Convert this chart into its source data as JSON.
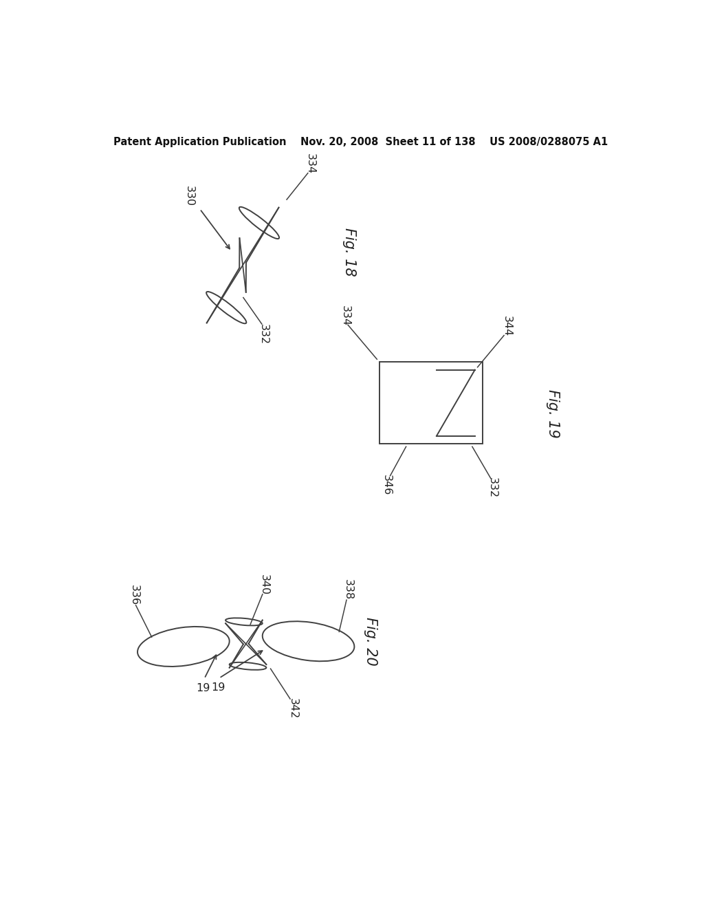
{
  "bg_color": "#ffffff",
  "header_text": "Patent Application Publication    Nov. 20, 2008  Sheet 11 of 138    US 2008/0288075 A1",
  "header_fontsize": 10.5,
  "fig18_label": "Fig. 18",
  "fig19_label": "Fig. 19",
  "fig20_label": "Fig. 20",
  "label_330": "330",
  "label_332_18": "332",
  "label_334_18": "334",
  "label_332_19": "332",
  "label_334_19": "334",
  "label_344": "344",
  "label_346": "346",
  "label_336": "336",
  "label_338": "338",
  "label_340": "340",
  "label_342": "342",
  "label_19a": "19",
  "label_19b": "19"
}
